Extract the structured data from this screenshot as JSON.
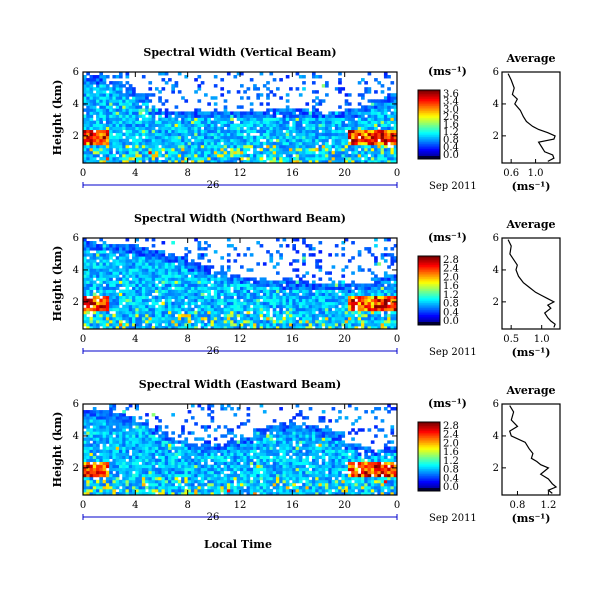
{
  "panels": [
    {
      "title": "Spectral Width (Vertical Beam)",
      "ylabel": "Height (km)",
      "cbar_unit": "(ms⁻¹)",
      "cbar_ticks": [
        "3.6",
        "3.4",
        "3.0",
        "2.6",
        "1.6",
        "1.2",
        "0.8",
        "0.4",
        "0.0"
      ],
      "date_label": "Sep 2011",
      "day_label": "26",
      "avg_title": "Average",
      "avg_unit": "(ms⁻¹)",
      "avg_xticks": [
        "0.6",
        "1.0"
      ]
    },
    {
      "title": "Spectral Width (Northward Beam)",
      "ylabel": "Height (km)",
      "cbar_unit": "(ms⁻¹)",
      "cbar_ticks": [
        "2.8",
        "2.4",
        "2.0",
        "1.6",
        "1.2",
        "0.8",
        "0.4",
        "0.0"
      ],
      "date_label": "Sep 2011",
      "day_label": "26",
      "avg_title": "Average",
      "avg_unit": "(ms⁻¹)",
      "avg_xticks": [
        "0.5",
        "1.0"
      ]
    },
    {
      "title": "Spectral Width (Eastward Beam)",
      "ylabel": "Height (km)",
      "cbar_unit": "(ms⁻¹)",
      "cbar_ticks": [
        "2.8",
        "2.4",
        "2.0",
        "1.6",
        "1.2",
        "0.8",
        "0.4",
        "0.0"
      ],
      "date_label": "Sep 2011",
      "day_label": "26",
      "avg_title": "Average",
      "avg_unit": "(ms⁻¹)",
      "avg_xticks": [
        "0.8",
        "1.2"
      ]
    }
  ],
  "bottom_xlabel": "Local Time",
  "chart_data": [
    {
      "type": "heatmap",
      "title": "Spectral Width (Vertical Beam)",
      "xlabel": "",
      "ylabel": "Height (km)",
      "x_ticks": [
        "0",
        "4",
        "8",
        "12",
        "16",
        "20",
        "0"
      ],
      "y_ticks": [
        "2",
        "4",
        "6"
      ],
      "xlim": [
        0,
        24
      ],
      "ylim": [
        0.3,
        6
      ],
      "colorbar": {
        "unit": "(ms⁻¹)",
        "range": [
          0.0,
          3.6
        ]
      },
      "coverage_top_km": [
        5.9,
        5.8,
        5.5,
        5.0,
        4.6,
        3.8,
        3.6,
        3.6,
        3.6,
        3.6,
        3.6,
        3.6,
        3.6,
        3.6,
        3.7,
        3.7,
        3.7,
        3.6,
        3.6,
        3.6,
        3.7,
        4.0,
        4.3,
        4.6
      ]
    },
    {
      "type": "line",
      "title": "Average",
      "xlabel": "(ms⁻¹)",
      "ylabel": "",
      "x_ticks": [
        "0.6",
        "1.0"
      ],
      "y_ticks": [
        "2",
        "4",
        "6"
      ],
      "xlim": [
        0.45,
        1.4
      ],
      "ylim": [
        0.3,
        6
      ],
      "series": [
        {
          "x": [
            0.55,
            0.6,
            0.65,
            0.62,
            0.7,
            0.66,
            0.75,
            0.8,
            0.85,
            0.95,
            1.05,
            1.2,
            1.32,
            1.3,
            1.05,
            1.1,
            1.15,
            1.28,
            1.3,
            1.2
          ],
          "y": [
            5.9,
            5.5,
            5.0,
            4.6,
            4.3,
            4.0,
            3.6,
            3.2,
            2.9,
            2.6,
            2.4,
            2.2,
            2.0,
            1.8,
            1.6,
            1.3,
            1.0,
            0.8,
            0.6,
            0.4
          ]
        }
      ]
    },
    {
      "type": "heatmap",
      "title": "Spectral Width (Northward Beam)",
      "xlabel": "",
      "ylabel": "Height (km)",
      "x_ticks": [
        "0",
        "4",
        "8",
        "12",
        "16",
        "20",
        "0"
      ],
      "y_ticks": [
        "2",
        "4",
        "6"
      ],
      "xlim": [
        0,
        24
      ],
      "ylim": [
        0.3,
        6
      ],
      "colorbar": {
        "unit": "(ms⁻¹)",
        "range": [
          0.0,
          2.8
        ]
      },
      "coverage_top_km": [
        5.8,
        5.7,
        5.7,
        5.6,
        5.4,
        5.2,
        5.0,
        4.8,
        4.5,
        4.2,
        4.0,
        3.8,
        3.6,
        3.5,
        3.4,
        3.3,
        3.3,
        3.2,
        3.2,
        3.2,
        3.1,
        3.2,
        3.5,
        3.8
      ]
    },
    {
      "type": "line",
      "title": "Average",
      "xlabel": "(ms⁻¹)",
      "ylabel": "",
      "x_ticks": [
        "0.5",
        "1.0"
      ],
      "y_ticks": [
        "2",
        "4",
        "6"
      ],
      "xlim": [
        0.35,
        1.3
      ],
      "ylim": [
        0.3,
        6
      ],
      "series": [
        {
          "x": [
            0.45,
            0.5,
            0.48,
            0.55,
            0.6,
            0.58,
            0.62,
            0.7,
            0.8,
            0.9,
            1.0,
            1.1,
            1.2,
            1.1,
            1.15,
            1.05,
            1.1,
            1.15,
            1.22,
            1.2
          ],
          "y": [
            5.9,
            5.5,
            5.0,
            4.6,
            4.3,
            4.0,
            3.6,
            3.2,
            2.9,
            2.6,
            2.4,
            2.2,
            2.0,
            1.8,
            1.6,
            1.3,
            1.0,
            0.8,
            0.6,
            0.4
          ]
        }
      ]
    },
    {
      "type": "heatmap",
      "title": "Spectral Width (Eastward Beam)",
      "xlabel": "Local Time",
      "ylabel": "Height (km)",
      "x_ticks": [
        "0",
        "4",
        "8",
        "12",
        "16",
        "20",
        "0"
      ],
      "y_ticks": [
        "2",
        "4",
        "6"
      ],
      "xlim": [
        0,
        24
      ],
      "ylim": [
        0.3,
        6
      ],
      "colorbar": {
        "unit": "(ms⁻¹)",
        "range": [
          0.0,
          2.8
        ]
      },
      "coverage_top_km": [
        5.7,
        5.6,
        5.4,
        5.2,
        4.9,
        4.6,
        4.2,
        3.8,
        3.6,
        3.5,
        3.6,
        3.8,
        4.0,
        4.4,
        4.6,
        4.8,
        4.8,
        4.7,
        4.5,
        4.2,
        3.6,
        3.3,
        3.2,
        3.4
      ]
    },
    {
      "type": "line",
      "title": "Average",
      "xlabel": "(ms⁻¹)",
      "ylabel": "",
      "x_ticks": [
        "0.8",
        "1.2"
      ],
      "y_ticks": [
        "2",
        "4",
        "6"
      ],
      "xlim": [
        0.6,
        1.35
      ],
      "ylim": [
        0.3,
        6
      ],
      "series": [
        {
          "x": [
            0.7,
            0.75,
            0.72,
            0.8,
            0.7,
            0.72,
            0.9,
            0.95,
            1.0,
            0.98,
            1.05,
            1.1,
            1.2,
            1.15,
            1.1,
            1.2,
            1.25,
            1.3,
            1.2,
            1.25
          ],
          "y": [
            5.9,
            5.5,
            5.0,
            4.6,
            4.3,
            4.0,
            3.6,
            3.2,
            2.9,
            2.6,
            2.4,
            2.2,
            2.0,
            1.8,
            1.6,
            1.3,
            1.0,
            0.8,
            0.6,
            0.4
          ]
        }
      ]
    }
  ]
}
